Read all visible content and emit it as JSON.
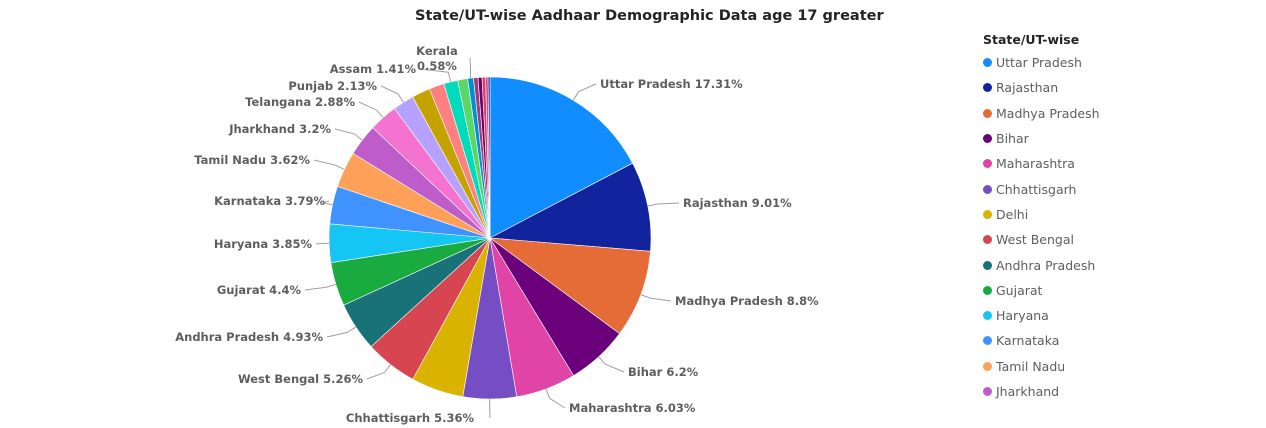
{
  "chart_data": {
    "type": "pie",
    "title": "State/UT-wise Aadhaar Demographic Data age 17 greater",
    "legend_title": "State/UT-wise",
    "legend_position": "right",
    "slices": [
      {
        "name": "Uttar Pradesh",
        "value": 17.31,
        "label": "Uttar Pradesh 17.31%",
        "color": "#118DFF"
      },
      {
        "name": "Rajasthan",
        "value": 9.01,
        "label": "Rajasthan 9.01%",
        "color": "#12239E"
      },
      {
        "name": "Madhya Pradesh",
        "value": 8.8,
        "label": "Madhya Pradesh 8.8%",
        "color": "#E66C37"
      },
      {
        "name": "Bihar",
        "value": 6.2,
        "label": "Bihar 6.2%",
        "color": "#6B007B"
      },
      {
        "name": "Maharashtra",
        "value": 6.03,
        "label": "Maharashtra 6.03%",
        "color": "#E044A7"
      },
      {
        "name": "Chhattisgarh",
        "value": 5.36,
        "label": "Chhattisgarh 5.36%",
        "color": "#744EC2"
      },
      {
        "name": "Delhi",
        "value": 5.26,
        "label": "",
        "color": "#D9B300"
      },
      {
        "name": "West Bengal",
        "value": 5.26,
        "label": "West Bengal 5.26%",
        "color": "#D64550"
      },
      {
        "name": "Andhra Pradesh",
        "value": 4.93,
        "label": "Andhra Pradesh 4.93%",
        "color": "#197278"
      },
      {
        "name": "Gujarat",
        "value": 4.4,
        "label": "Gujarat 4.4%",
        "color": "#1AAB40"
      },
      {
        "name": "Haryana",
        "value": 3.85,
        "label": "Haryana 3.85%",
        "color": "#15C6F4"
      },
      {
        "name": "Karnataka",
        "value": 3.79,
        "label": "Karnataka 3.79%",
        "color": "#4092FF"
      },
      {
        "name": "Tamil Nadu",
        "value": 3.62,
        "label": "Tamil Nadu 3.62%",
        "color": "#FFA058"
      },
      {
        "name": "Jharkhand",
        "value": 3.2,
        "label": "Jharkhand 3.2%",
        "color": "#BE5DC9"
      },
      {
        "name": "Telangana",
        "value": 2.88,
        "label": "Telangana 2.88%",
        "color": "#F472D0"
      },
      {
        "name": "Punjab",
        "value": 2.13,
        "label": "Punjab 2.13%",
        "color": "#B5A1FF"
      },
      {
        "name": "",
        "value": 1.85,
        "label": "",
        "color": "#C4A200"
      },
      {
        "name": "",
        "value": 1.5,
        "label": "",
        "color": "#FF8080"
      },
      {
        "name": "Assam",
        "value": 1.41,
        "label": "Assam 1.41%",
        "color": "#00DBBC"
      },
      {
        "name": "",
        "value": 1.0,
        "label": "",
        "color": "#5BD667"
      },
      {
        "name": "Kerala",
        "value": 0.58,
        "label": "Kerala 0.58%",
        "color": "#0091D5"
      },
      {
        "name": "",
        "value": 0.45,
        "label": "",
        "color": "#A43B76"
      },
      {
        "name": "",
        "value": 0.4,
        "label": "",
        "color": "#6B007B"
      },
      {
        "name": "",
        "value": 0.35,
        "label": "",
        "color": "#D64550"
      },
      {
        "name": "",
        "value": 0.25,
        "label": "",
        "color": "#E044A7"
      },
      {
        "name": "",
        "value": 0.19,
        "label": "",
        "color": "#12239E"
      }
    ],
    "legend_items": [
      "Uttar Pradesh",
      "Rajasthan",
      "Madhya Pradesh",
      "Bihar",
      "Maharashtra",
      "Chhattisgarh",
      "Delhi",
      "West Bengal",
      "Andhra Pradesh",
      "Gujarat",
      "Haryana",
      "Karnataka",
      "Tamil Nadu",
      "Jharkhand"
    ]
  }
}
